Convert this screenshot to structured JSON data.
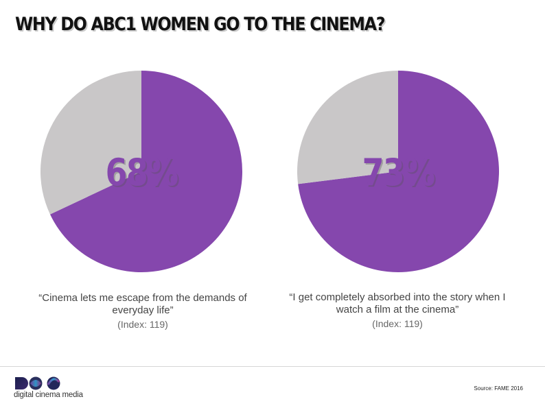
{
  "title": "WHY DO ABC1 WOMEN GO TO THE CINEMA?",
  "colors": {
    "primary": "#8547ad",
    "secondary": "#c9c7c8"
  },
  "chart_data": [
    {
      "type": "pie",
      "labels": [
        "Purple",
        "Grey"
      ],
      "values": [
        68,
        32
      ],
      "center_label": "68%",
      "quote": "“Cinema lets me escape from the demands of everyday life”",
      "index": "(Index: 119)"
    },
    {
      "type": "pie",
      "labels": [
        "Purple",
        "Grey"
      ],
      "values": [
        73,
        27
      ],
      "center_label": "73%",
      "quote": "“I get completely absorbed into the story when I watch a film at the cinema”",
      "index": "(Index: 119)"
    }
  ],
  "footer": {
    "source": "Source: FAME 2016",
    "logo_text": "digital cinema media"
  }
}
